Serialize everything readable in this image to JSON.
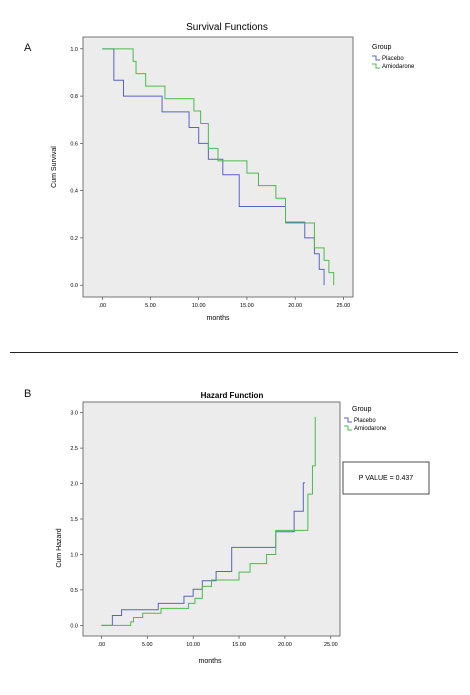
{
  "panels": {
    "a_letter": "A",
    "b_letter": "B"
  },
  "p_value_text": "P VALUE = 0.437",
  "chart_data": [
    {
      "type": "line",
      "step": true,
      "title": "Survival Functions",
      "xlabel": "months",
      "ylabel": "Cum Survival",
      "xlim": [
        -2.0,
        26.0
      ],
      "ylim": [
        -0.05,
        1.05
      ],
      "xticks": [
        0,
        5,
        10,
        15,
        20,
        25
      ],
      "xtick_labels": [
        ".00",
        "5.00",
        "10.00",
        "15.00",
        "20.00",
        "25.00"
      ],
      "yticks": [
        0.0,
        0.2,
        0.4,
        0.6,
        0.8,
        1.0
      ],
      "ytick_labels": [
        "0.0",
        "0.2",
        "0.4",
        "0.6",
        "0.8",
        "1.0"
      ],
      "grid": false,
      "legend_title": "Group",
      "legend_position": "right",
      "series": [
        {
          "name": "Placebo",
          "color": "#5b63c2",
          "x": [
            0,
            1.2,
            2.2,
            6.2,
            9.0,
            10.0,
            11.0,
            12.5,
            14.2,
            19.0,
            21.0,
            22.0,
            22.5,
            23.0
          ],
          "y": [
            1.0,
            0.867,
            0.8,
            0.733,
            0.667,
            0.6,
            0.533,
            0.467,
            0.333,
            0.267,
            0.2,
            0.133,
            0.067,
            0.0
          ]
        },
        {
          "name": "Amiodarone",
          "color": "#4cbb4c",
          "x": [
            0,
            3.2,
            3.5,
            4.5,
            6.5,
            9.5,
            10.2,
            11.0,
            12.0,
            15.0,
            16.2,
            18.0,
            19.0,
            21.0,
            22.0,
            23.0,
            23.5,
            24.0
          ],
          "y": [
            1.0,
            0.947,
            0.895,
            0.842,
            0.789,
            0.737,
            0.684,
            0.579,
            0.526,
            0.474,
            0.421,
            0.368,
            0.263,
            0.263,
            0.158,
            0.105,
            0.053,
            0.0
          ]
        }
      ]
    },
    {
      "type": "line",
      "step": true,
      "title": "Hazard Function",
      "xlabel": "months",
      "ylabel": "Cum Hazard",
      "xlim": [
        -2.0,
        26.0
      ],
      "ylim": [
        -0.15,
        3.15
      ],
      "xticks": [
        0,
        5,
        10,
        15,
        20,
        25
      ],
      "xtick_labels": [
        ".00",
        "5.00",
        "10.00",
        "15.00",
        "20.00",
        "25.00"
      ],
      "yticks": [
        0.0,
        0.5,
        1.0,
        1.5,
        2.0,
        2.5,
        3.0
      ],
      "ytick_labels": [
        "0.0",
        "0.5",
        "1.0",
        "1.5",
        "2.0",
        "2.5",
        "3.0"
      ],
      "grid": false,
      "legend_title": "Group",
      "legend_position": "right",
      "series": [
        {
          "name": "Placebo",
          "color": "#5b63c2",
          "x": [
            0,
            1.2,
            2.2,
            6.2,
            9.0,
            10.0,
            11.0,
            12.5,
            14.2,
            19.0,
            21.0,
            22.0,
            22.2
          ],
          "y": [
            0.0,
            0.14,
            0.22,
            0.31,
            0.41,
            0.51,
            0.63,
            0.76,
            1.1,
            1.32,
            1.61,
            2.01,
            2.01
          ]
        },
        {
          "name": "Amiodarone",
          "color": "#4cbb4c",
          "x": [
            0,
            3.2,
            3.5,
            4.5,
            6.5,
            9.5,
            10.2,
            11.0,
            12.0,
            15.0,
            16.2,
            18.0,
            19.0,
            21.5,
            22.5,
            23.0,
            23.3
          ],
          "y": [
            0.0,
            0.05,
            0.11,
            0.17,
            0.24,
            0.31,
            0.38,
            0.55,
            0.64,
            0.75,
            0.87,
            1.0,
            1.34,
            1.34,
            1.85,
            2.25,
            2.94
          ]
        }
      ]
    }
  ]
}
